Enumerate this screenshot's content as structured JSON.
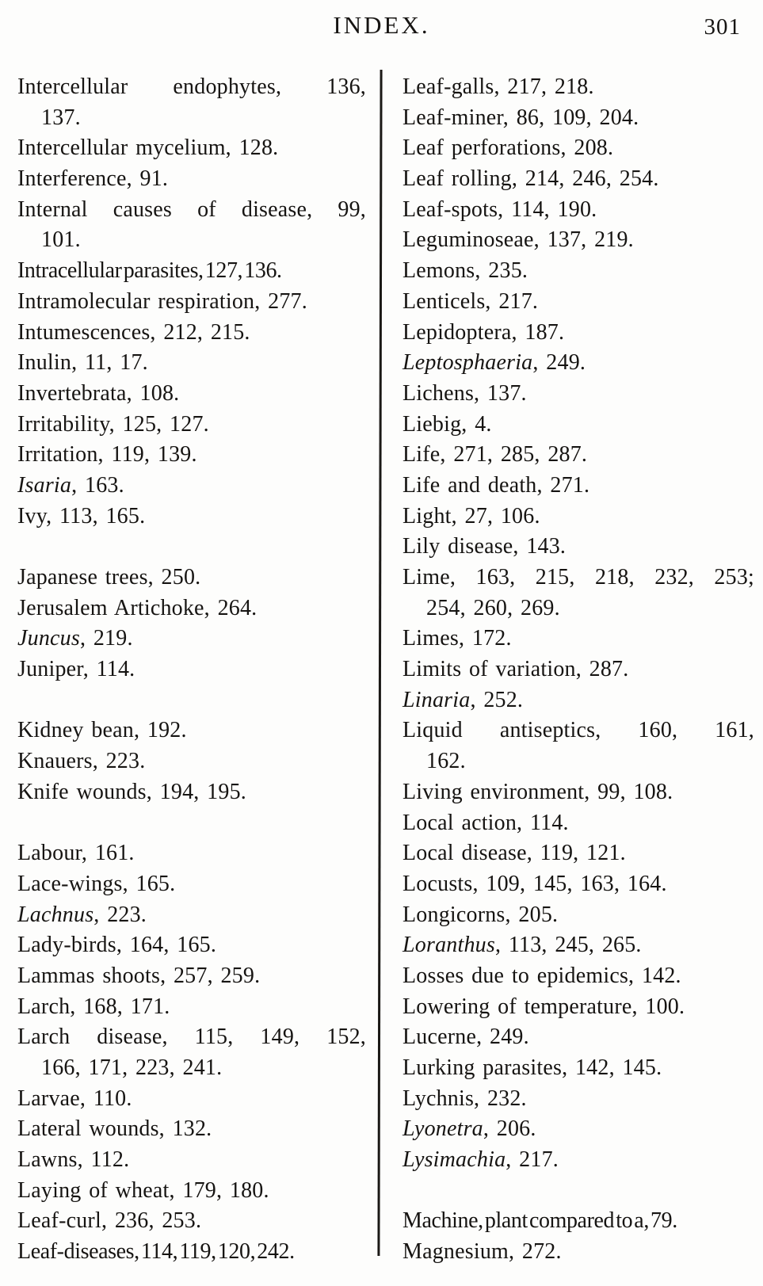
{
  "header": {
    "title": "INDEX.",
    "page_number": "301"
  },
  "columns": {
    "left": [
      {
        "text": "Intercellular endophytes, 136,",
        "justified": true
      },
      {
        "text": "137.",
        "indent": true
      },
      {
        "text": "Intercellular mycelium, 128."
      },
      {
        "text": "Interference, 91."
      },
      {
        "text": "Internal causes of disease, 99,",
        "justified": true
      },
      {
        "text": "101.",
        "indent": true
      },
      {
        "text": "Intracellular parasites, 127, 136.",
        "tight": true
      },
      {
        "text": "Intramolecular respiration, 277."
      },
      {
        "text": "Intumescences, 212, 215."
      },
      {
        "text": "Inulin, 11, 17."
      },
      {
        "text": "Invertebrata, 108."
      },
      {
        "text": "Irritability, 125, 127."
      },
      {
        "text": "Irritation, 119, 139."
      },
      {
        "italic_term": "Isaria",
        "roman_rest": ", 163."
      },
      {
        "text": "Ivy, 113, 165."
      },
      {
        "blank": true
      },
      {
        "text": "Japanese trees, 250."
      },
      {
        "text": "Jerusalem Artichoke, 264."
      },
      {
        "italic_term": "Juncus",
        "roman_rest": ", 219."
      },
      {
        "text": "Juniper, 114."
      },
      {
        "blank": true
      },
      {
        "text": "Kidney bean, 192."
      },
      {
        "text": "Knauers, 223."
      },
      {
        "text": "Knife wounds, 194, 195."
      },
      {
        "blank": true
      },
      {
        "text": "Labour, 161."
      },
      {
        "text": "Lace-wings, 165."
      },
      {
        "italic_term": "Lachnus",
        "roman_rest": ", 223."
      },
      {
        "text": "Lady-birds, 164, 165."
      },
      {
        "text": "Lammas shoots, 257, 259."
      },
      {
        "text": "Larch, 168, 171."
      },
      {
        "text": "Larch disease, 115, 149, 152,",
        "justified": true
      },
      {
        "text": "166, 171, 223, 241.",
        "indent": true
      },
      {
        "text": "Larvae, 110."
      },
      {
        "text": "Lateral wounds, 132."
      },
      {
        "text": "Lawns, 112."
      },
      {
        "text": "Laying of wheat, 179, 180."
      },
      {
        "text": "Leaf-curl, 236, 253."
      },
      {
        "text": "Leaf-diseases, 114, 119, 120, 242.",
        "tight": true
      }
    ],
    "right": [
      {
        "text": "Leaf-galls, 217, 218."
      },
      {
        "text": "Leaf-miner, 86, 109, 204."
      },
      {
        "text": "Leaf perforations, 208."
      },
      {
        "text": "Leaf rolling, 214, 246, 254."
      },
      {
        "text": "Leaf-spots, 114, 190."
      },
      {
        "text": "Leguminoseae, 137, 219."
      },
      {
        "text": "Lemons, 235."
      },
      {
        "text": "Lenticels, 217."
      },
      {
        "text": "Lepidoptera, 187."
      },
      {
        "italic_term": "Leptosphaeria",
        "roman_rest": ", 249."
      },
      {
        "text": "Lichens, 137."
      },
      {
        "text": "Liebig, 4."
      },
      {
        "text": "Life, 271, 285, 287."
      },
      {
        "text": "Life and death, 271."
      },
      {
        "text": "Light, 27, 106."
      },
      {
        "text": "Lily disease, 143."
      },
      {
        "text": "Lime, 163, 215, 218, 232, 253;",
        "justified": true
      },
      {
        "text": "254, 260, 269.",
        "indent": true
      },
      {
        "text": "Limes, 172."
      },
      {
        "text": "Limits of variation, 287."
      },
      {
        "italic_term": "Linaria",
        "roman_rest": ", 252."
      },
      {
        "text": "Liquid antiseptics, 160, 161,",
        "justified": true
      },
      {
        "text": "162.",
        "indent": true
      },
      {
        "text": "Living environment, 99, 108."
      },
      {
        "text": "Local action, 114."
      },
      {
        "text": "Local disease, 119, 121."
      },
      {
        "text": "Locusts, 109, 145, 163, 164."
      },
      {
        "text": "Longicorns, 205."
      },
      {
        "italic_term": "Loranthus",
        "roman_rest": ", 113, 245, 265."
      },
      {
        "text": "Losses due to epidemics, 142."
      },
      {
        "text": "Lowering of temperature, 100."
      },
      {
        "text": "Lucerne, 249."
      },
      {
        "text": "Lurking parasites, 142, 145."
      },
      {
        "text": "Lychnis, 232."
      },
      {
        "italic_term": "Lyonetra",
        "roman_rest": ", 206."
      },
      {
        "italic_term": "Lysimachia",
        "roman_rest": ", 217."
      },
      {
        "blank": true
      },
      {
        "text": "Machine, plant compared to a, 79.",
        "tight": true
      },
      {
        "text": "Magnesium, 272."
      }
    ]
  }
}
